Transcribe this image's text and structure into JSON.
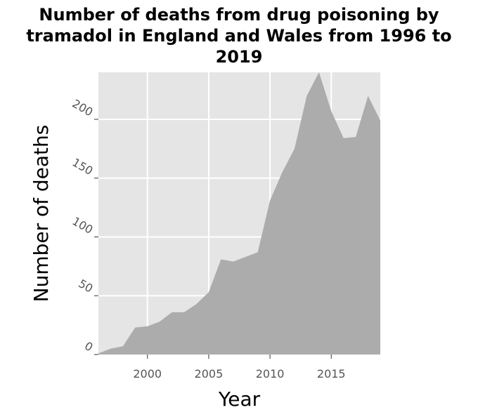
{
  "chart_data": {
    "type": "area",
    "title": "Number of deaths from drug poisoning by tramadol in England and Wales from 1996 to 2019",
    "xlabel": "Year",
    "ylabel": "Number of deaths",
    "x": [
      1996,
      1997,
      1998,
      1999,
      2000,
      2001,
      2002,
      2003,
      2004,
      2005,
      2006,
      2007,
      2008,
      2009,
      2010,
      2011,
      2012,
      2013,
      2014,
      2015,
      2016,
      2017,
      2018,
      2019
    ],
    "series": [
      {
        "values": [
          1,
          5,
          7,
          23,
          24,
          28,
          36,
          36,
          43,
          53,
          81,
          79,
          83,
          87,
          131,
          155,
          175,
          220,
          240,
          207,
          184,
          185,
          220,
          199
        ]
      }
    ],
    "xlim": [
      1996,
      2019
    ],
    "ylim": [
      0,
      240
    ],
    "x_ticks": [
      "2000",
      "2005",
      "2010",
      "2015"
    ],
    "y_ticks": [
      "0",
      "50",
      "100",
      "150",
      "200"
    ],
    "grid": true,
    "colors": {
      "panel": "#e5e5e5",
      "area": "#acacac",
      "grid": "#ffffff"
    }
  }
}
